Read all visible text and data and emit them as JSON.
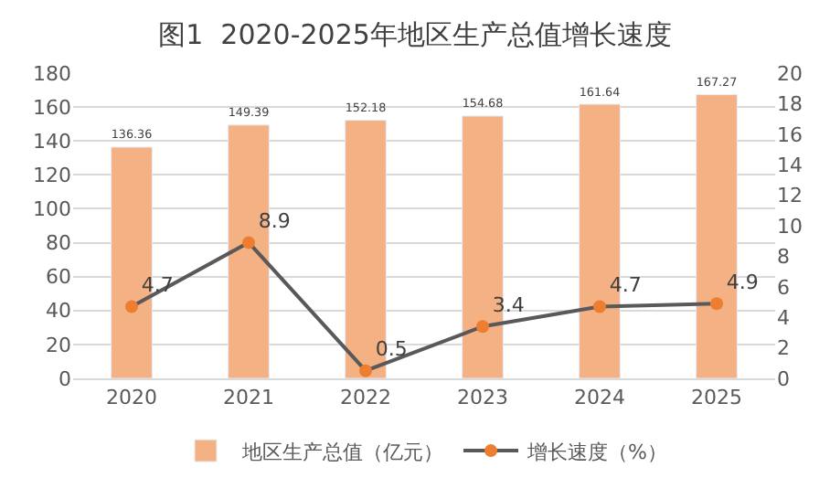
{
  "chart_data": {
    "type": "bar",
    "title": "图1  2020-2025年地区生产总值增长速度",
    "categories": [
      "2020",
      "2021",
      "2022",
      "2023",
      "2024",
      "2025"
    ],
    "series": [
      {
        "name": "地区生产总值（亿元）",
        "color": "#f4b183",
        "values": [
          136.36,
          149.39,
          152.18,
          154.68,
          161.64,
          167.27
        ]
      },
      {
        "name": "增长速度（%）",
        "type": "line",
        "axis": "y2",
        "color": "#ed7d31",
        "values": [
          4.7,
          8.9,
          0.5,
          3.4,
          4.7,
          4.9
        ]
      }
    ],
    "ylim": [
      0,
      180
    ],
    "yticks": [
      0,
      20,
      40,
      60,
      80,
      100,
      120,
      140,
      160,
      180
    ],
    "y2lim": [
      0,
      20
    ],
    "y2ticks": [
      0,
      2,
      4,
      6,
      8,
      10,
      12,
      14,
      16,
      18,
      20
    ],
    "data_labels": true,
    "grid": "y",
    "legend": "bottom",
    "marker": "circle",
    "line_style": "solid"
  }
}
